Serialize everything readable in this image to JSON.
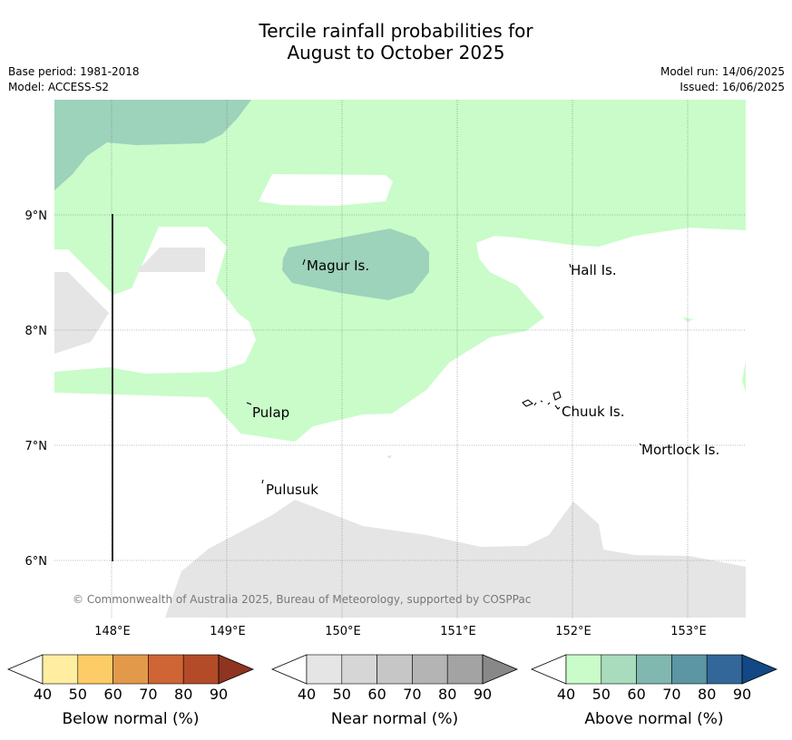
{
  "title": {
    "line1": "Tercile rainfall probabilities for",
    "line2": "August to October 2025"
  },
  "meta": {
    "base_period": "Base period: 1981-2018",
    "model": "Model: ACCESS-S2",
    "model_run": "Model run: 14/06/2025",
    "issued": "Issued: 16/06/2025"
  },
  "map": {
    "lon_labels": [
      "148°E",
      "149°E",
      "150°E",
      "151°E",
      "152°E",
      "153°E"
    ],
    "lat_labels": [
      "9°N",
      "8°N",
      "7°N",
      "6°N"
    ],
    "places": [
      {
        "id": "magur",
        "name": "Magur Is."
      },
      {
        "id": "hall",
        "name": "Hall Is."
      },
      {
        "id": "pulap",
        "name": "Pulap"
      },
      {
        "id": "chuuk",
        "name": "Chuuk Is."
      },
      {
        "id": "mortlock",
        "name": "Mortlock Is."
      },
      {
        "id": "pulusuk",
        "name": "Pulusuk"
      }
    ],
    "copyright": "© Commonwealth of Australia 2025, Bureau of Meteorology, supported by COSPPac",
    "colors": {
      "above_40_50": "#c9fcc9",
      "above_50_60": "#9dd2bb",
      "near_40_50": "#e5e5e5",
      "no_dominant": "#ffffff"
    }
  },
  "colorbars": {
    "ticks": [
      "40",
      "50",
      "60",
      "70",
      "80",
      "90"
    ],
    "below": {
      "label": "Below normal (%)",
      "colors": [
        "#ffeea1",
        "#fecc66",
        "#e29a4a",
        "#cf6534",
        "#b34b28",
        "#8e3420"
      ]
    },
    "near": {
      "label": "Near normal (%)",
      "colors": [
        "#e5e5e5",
        "#d6d6d6",
        "#c6c6c6",
        "#b4b4b4",
        "#a3a3a3",
        "#888888"
      ]
    },
    "above": {
      "label": "Above normal (%)",
      "colors": [
        "#c9fcc9",
        "#a8dcbd",
        "#80b8b0",
        "#5c95a3",
        "#346799",
        "#124885"
      ]
    }
  }
}
